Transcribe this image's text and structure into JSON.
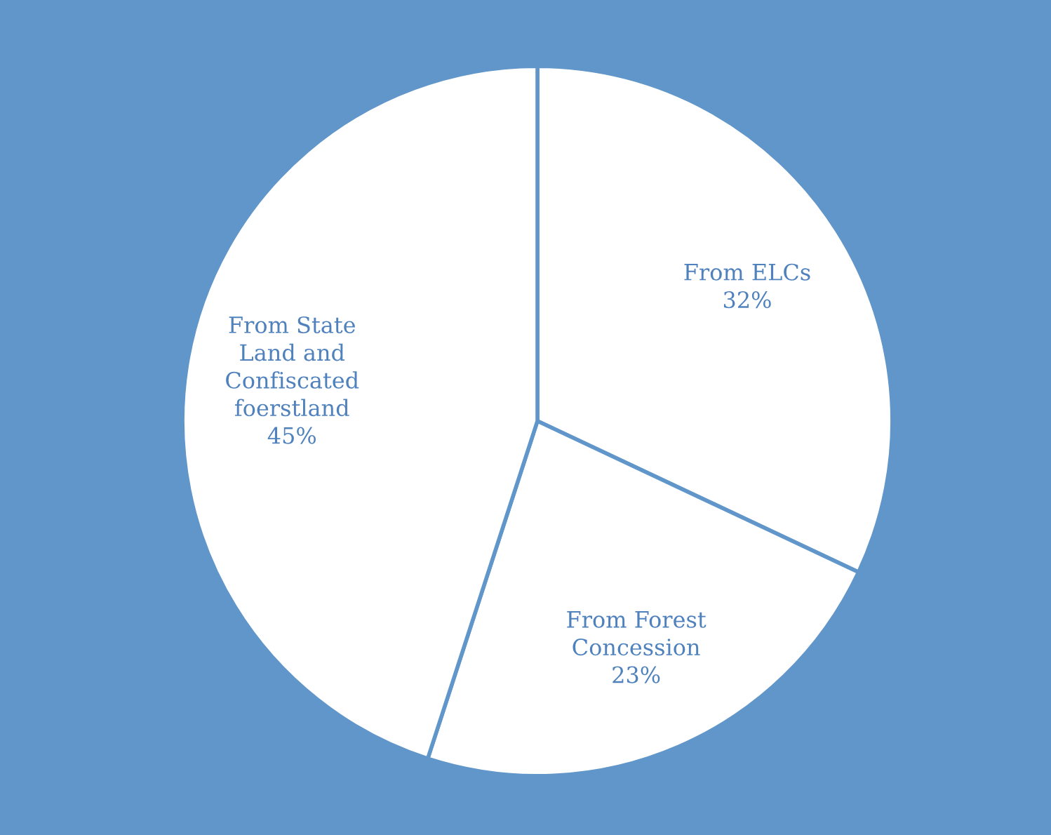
{
  "chart_data": {
    "type": "pie",
    "categories": [
      "From ELCs",
      "From Forest\nConcession",
      "From State\nLand and\nConfiscated\nfoerstland"
    ],
    "values": [
      32,
      23,
      45
    ],
    "value_labels": [
      "32%",
      "23%",
      "45%"
    ],
    "colors": [
      "#ffffff",
      "#ffffff",
      "#ffffff"
    ]
  }
}
